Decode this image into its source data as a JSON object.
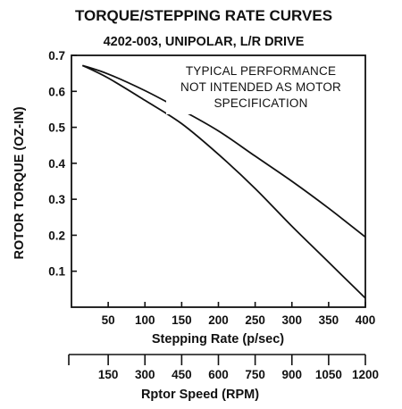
{
  "chart_data": {
    "type": "line",
    "title": "TORQUE/STEPPING RATE CURVES",
    "subtitle": "4202-003, UNIPOLAR, L/R DRIVE",
    "annotation": [
      "TYPICAL PERFORMANCE",
      "NOT INTENDED AS MOTOR",
      "SPECIFICATION"
    ],
    "xlabel": "Stepping Rate (p/sec)",
    "ylabel": "ROTOR TORQUE (OZ-IN)",
    "x2label": "Rptor Speed (RPM)",
    "xlim": [
      0,
      400
    ],
    "ylim": [
      0,
      0.7
    ],
    "x_ticks": [
      "50",
      "100",
      "150",
      "200",
      "250",
      "300",
      "350",
      "400"
    ],
    "y_ticks": [
      "0.1",
      "0.2",
      "0.3",
      "0.4",
      "0.5",
      "0.6",
      "0.7"
    ],
    "x2_ticks": [
      "150",
      "300",
      "450",
      "600",
      "750",
      "900",
      "1050",
      "1200"
    ],
    "grid": false,
    "series": [
      {
        "x": [
          15,
          50,
          100,
          150,
          200,
          250,
          300,
          350,
          400
        ],
        "y": [
          0.672,
          0.648,
          0.602,
          0.548,
          0.49,
          0.42,
          0.35,
          0.275,
          0.195
        ]
      },
      {
        "x": [
          15,
          50,
          100,
          150,
          200,
          250,
          300,
          350,
          400
        ],
        "y": [
          0.672,
          0.637,
          0.575,
          0.51,
          0.425,
          0.33,
          0.225,
          0.125,
          0.025
        ]
      }
    ]
  }
}
